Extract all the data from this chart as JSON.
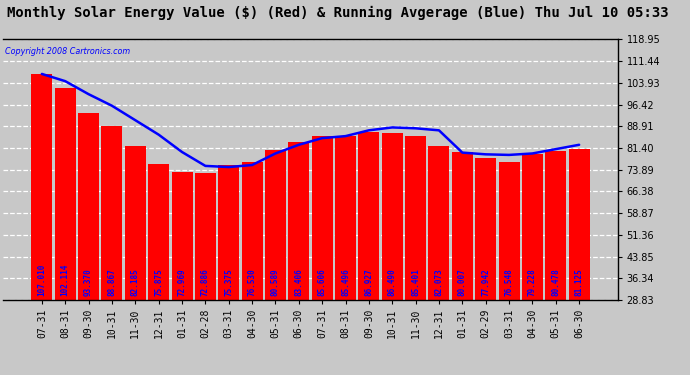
{
  "title": "Monthly Solar Energy Value ($) (Red) & Running Avgerage (Blue) Thu Jul 10 05:33",
  "copyright": "Copyright 2008 Cartronics.com",
  "categories": [
    "07-31",
    "08-31",
    "09-30",
    "10-31",
    "11-30",
    "12-31",
    "01-31",
    "02-28",
    "03-31",
    "04-30",
    "05-31",
    "06-30",
    "07-31",
    "08-31",
    "09-30",
    "10-31",
    "11-30",
    "12-31",
    "01-31",
    "02-29",
    "03-31",
    "04-30",
    "05-31",
    "06-30"
  ],
  "bar_values": [
    107.01,
    102.114,
    93.37,
    88.867,
    82.185,
    75.875,
    72.969,
    72.886,
    75.375,
    76.53,
    80.589,
    83.406,
    85.606,
    85.496,
    86.927,
    86.49,
    85.401,
    82.073,
    80.007,
    77.942,
    76.548,
    79.228,
    80.478,
    81.125
  ],
  "running_avg": [
    107.0,
    104.5,
    100.0,
    96.0,
    91.0,
    86.0,
    80.0,
    75.2,
    74.8,
    75.5,
    79.5,
    82.5,
    84.8,
    85.5,
    87.5,
    88.5,
    88.2,
    87.5,
    79.8,
    79.2,
    79.0,
    79.5,
    81.0,
    82.5
  ],
  "bar_color": "#ff0000",
  "line_color": "#0000ff",
  "background_color": "#c8c8c8",
  "plot_background": "#c8c8c8",
  "ymin": 28.83,
  "ymax": 118.95,
  "yticks": [
    28.83,
    36.34,
    43.85,
    51.36,
    58.87,
    66.38,
    73.89,
    81.4,
    88.91,
    96.42,
    103.93,
    111.44,
    118.95
  ],
  "title_fontsize": 10,
  "tick_fontsize": 7,
  "value_label_fontsize": 5.5,
  "fig_width": 6.9,
  "fig_height": 3.75,
  "dpi": 100
}
